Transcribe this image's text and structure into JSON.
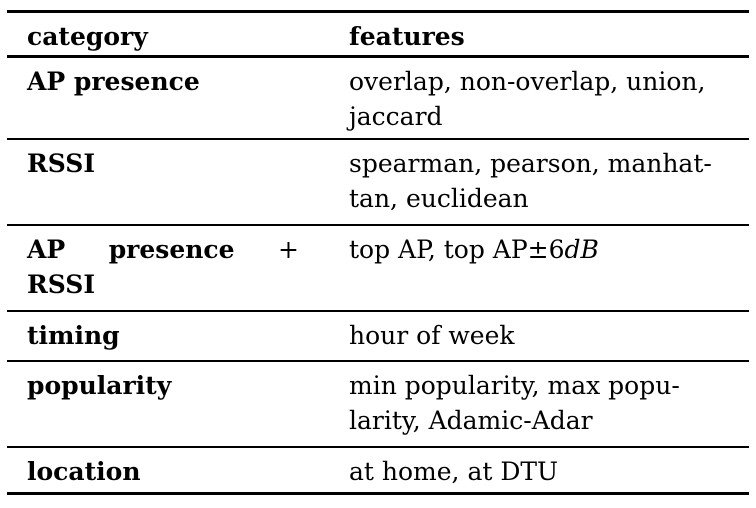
{
  "table": {
    "header": {
      "category": "category",
      "features": "features"
    },
    "rows": [
      {
        "category": "AP presence",
        "features_line1": "overlap, non-overlap, union,",
        "features_line2": "jaccard"
      },
      {
        "category": "RSSI",
        "features_line1": "spearman, pearson, manhat-",
        "features_line2": "tan, euclidean"
      },
      {
        "category_word1": "AP",
        "category_word2": "presence",
        "category_plus": "+",
        "category_line2": "RSSI",
        "features_prefix": "top AP, top AP±6",
        "features_math": "dB"
      },
      {
        "category": "timing",
        "features_line1": "hour of week"
      },
      {
        "category": "popularity",
        "features_line1": "min popularity, max popu-",
        "features_line2": "larity, Adamic-Adar"
      },
      {
        "category": "location",
        "features_line1": "at home, at DTU"
      }
    ]
  }
}
